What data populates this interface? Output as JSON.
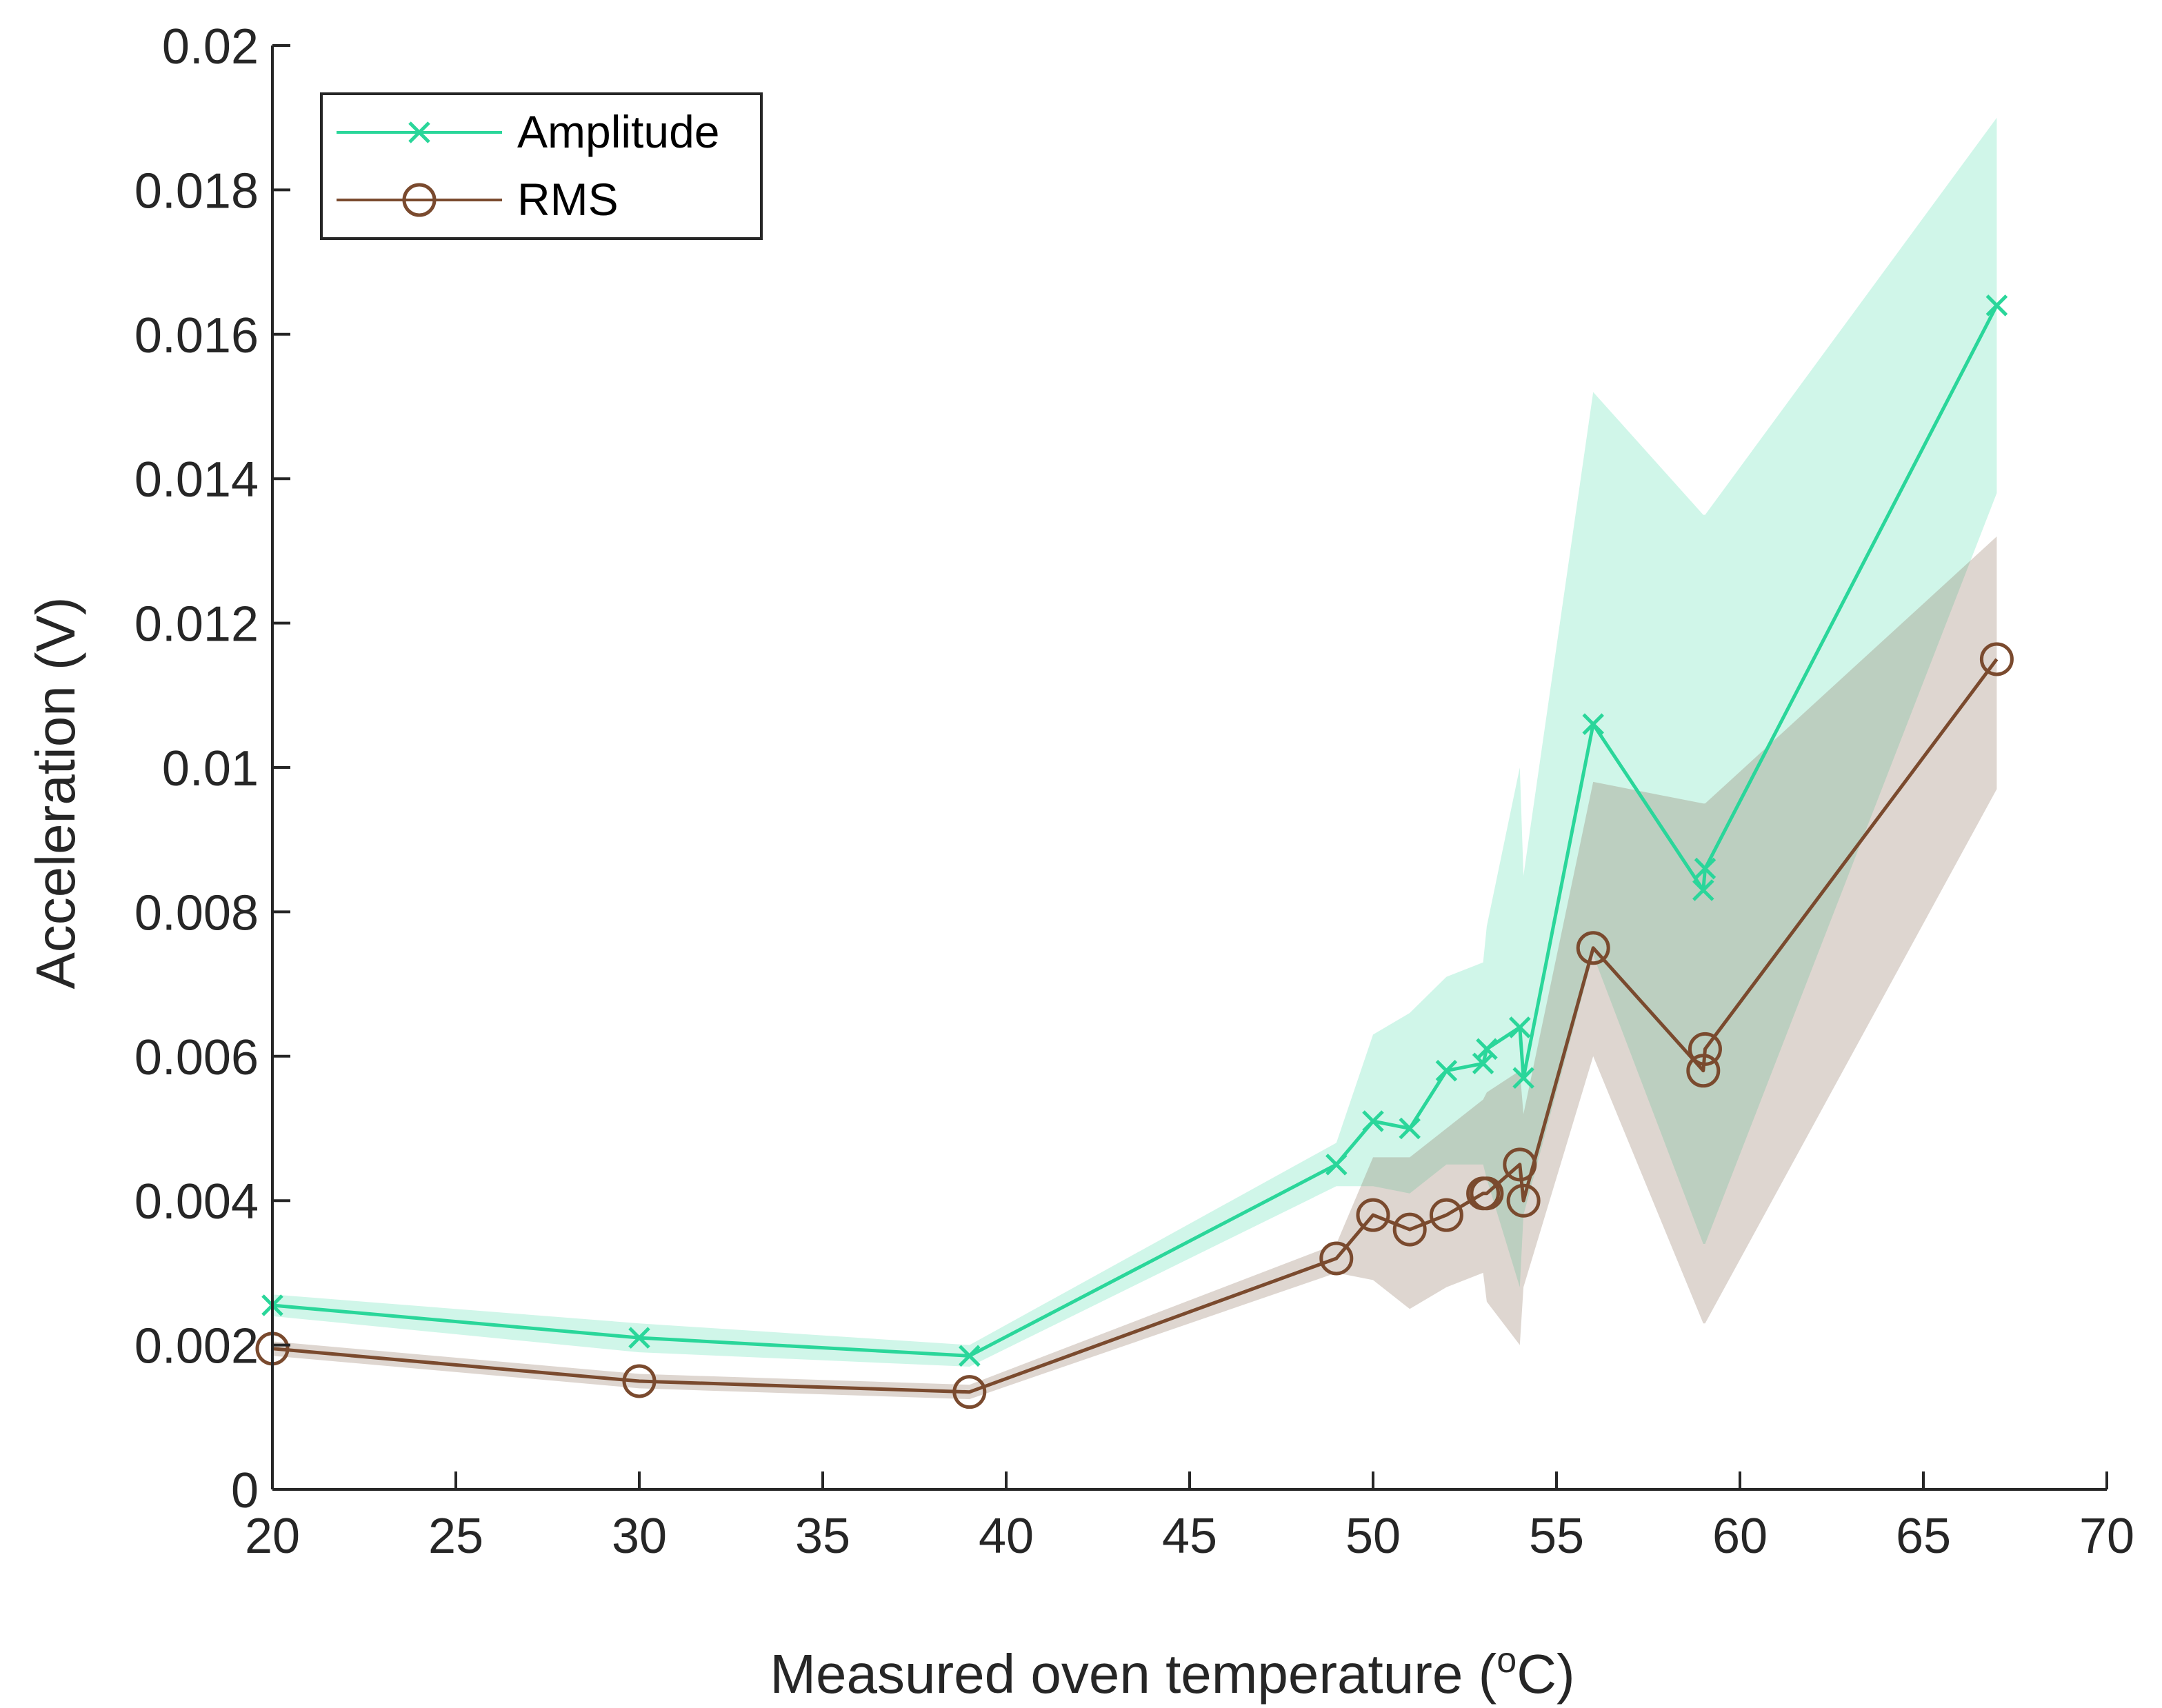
{
  "chart_data": {
    "type": "line",
    "title": "",
    "xlabel": "Measured oven temperature",
    "xlabel_unit_open": "(",
    "xlabel_unit_sup": "o",
    "xlabel_unit_rest": "C)",
    "ylabel": "Acceleration (V)",
    "xlim": [
      20,
      70
    ],
    "ylim": [
      0,
      0.02
    ],
    "x_ticks": [
      20,
      25,
      30,
      35,
      40,
      45,
      50,
      55,
      60,
      65,
      70
    ],
    "x_tick_labels": [
      "20",
      "25",
      "30",
      "35",
      "40",
      "45",
      "50",
      "55",
      "60",
      "65",
      "70"
    ],
    "y_ticks": [
      0,
      0.002,
      0.004,
      0.006,
      0.008,
      0.01,
      0.012,
      0.014,
      0.016,
      0.018,
      0.02
    ],
    "y_tick_labels": [
      "0",
      "0.002",
      "0.004",
      "0.006",
      "0.008",
      "0.01",
      "0.012",
      "0.014",
      "0.016",
      "0.018",
      "0.02"
    ],
    "grid": false,
    "legend_position": "top-left",
    "series": [
      {
        "name": "Amplitude",
        "color": "#2ad69a",
        "band_color": "#2ad69a",
        "marker": "x",
        "x": [
          20,
          30,
          39,
          49,
          50,
          51,
          52,
          53,
          53.1,
          54,
          54.1,
          56,
          59,
          59.05,
          67
        ],
        "values": [
          0.00255,
          0.0021,
          0.00185,
          0.0045,
          0.0051,
          0.005,
          0.0058,
          0.0059,
          0.0061,
          0.0064,
          0.0057,
          0.0106,
          0.0083,
          0.0086,
          0.0164
        ],
        "upper": [
          0.0027,
          0.0023,
          0.002,
          0.0048,
          0.0063,
          0.0066,
          0.0071,
          0.0073,
          0.0078,
          0.01,
          0.0085,
          0.0152,
          0.0135,
          0.0135,
          0.019
        ],
        "lower": [
          0.0024,
          0.0019,
          0.0017,
          0.0042,
          0.0042,
          0.0041,
          0.0045,
          0.0045,
          0.0043,
          0.0028,
          0.0038,
          0.0074,
          0.0034,
          0.0034,
          0.0138
        ]
      },
      {
        "name": "RMS",
        "color": "#7a4a2e",
        "band_color": "#8a6a55",
        "marker": "o",
        "x": [
          20,
          30,
          39,
          49,
          50,
          51,
          52,
          53,
          53.1,
          54,
          54.1,
          56,
          59,
          59.05,
          67
        ],
        "values": [
          0.00195,
          0.0015,
          0.00135,
          0.0032,
          0.0038,
          0.0036,
          0.0038,
          0.0041,
          0.0041,
          0.0045,
          0.004,
          0.0075,
          0.0058,
          0.0061,
          0.0115
        ],
        "upper": [
          0.00205,
          0.0016,
          0.00145,
          0.0034,
          0.0046,
          0.0046,
          0.005,
          0.0054,
          0.0055,
          0.0058,
          0.0052,
          0.0098,
          0.0095,
          0.0095,
          0.0132
        ],
        "lower": [
          0.00185,
          0.0014,
          0.00125,
          0.003,
          0.0029,
          0.0025,
          0.0028,
          0.003,
          0.0026,
          0.002,
          0.0028,
          0.006,
          0.0023,
          0.0023,
          0.0097
        ]
      }
    ]
  }
}
